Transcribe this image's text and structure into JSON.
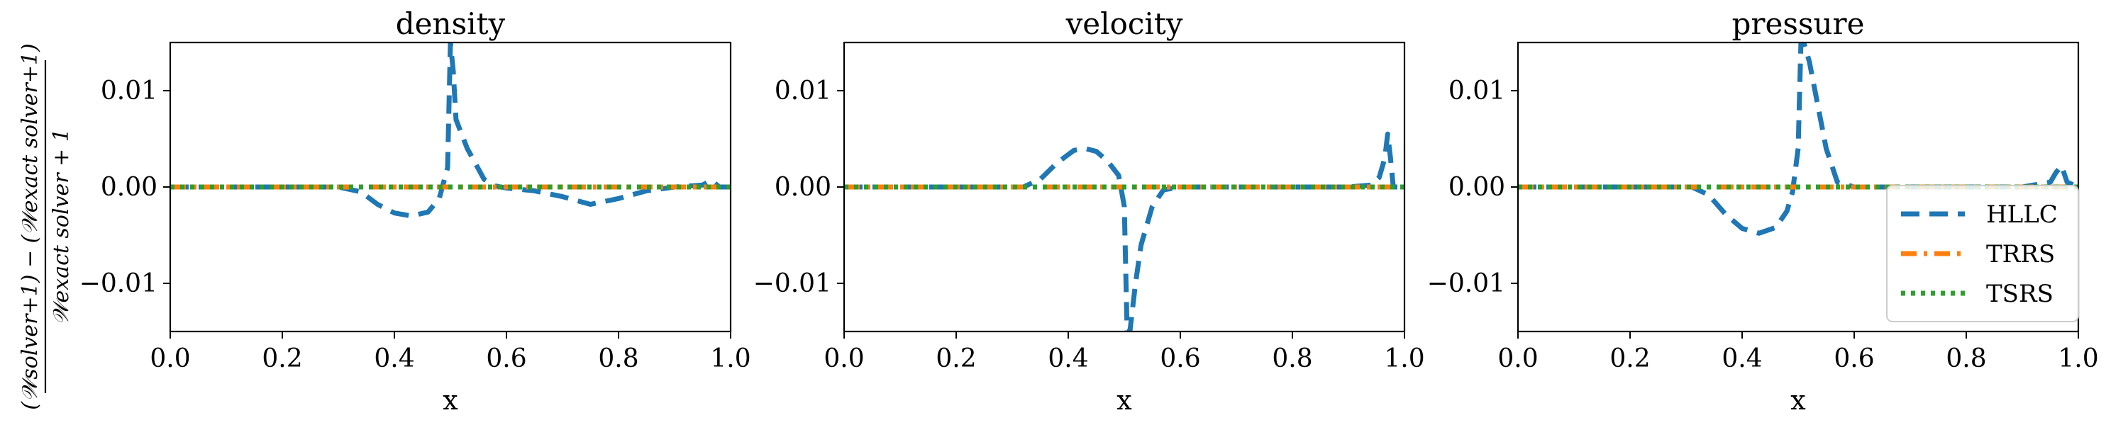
{
  "figure": {
    "ylabel": {
      "numerator": "(𝒲solver+1) − (𝒲exact solver+1)",
      "denominator": "𝒲exact solver + 1"
    }
  },
  "colors": {
    "HLLC": "#1f77b4",
    "TRRS": "#ff7f0e",
    "TSRS": "#2ca02c",
    "axes": "#000000"
  },
  "legend": {
    "placement": "lower-right of third panel",
    "entries": [
      {
        "label": "HLLC",
        "style": "dashed"
      },
      {
        "label": "TRRS",
        "style": "dash-dot"
      },
      {
        "label": "TSRS",
        "style": "dotted"
      }
    ]
  },
  "chart_data": [
    {
      "type": "line",
      "title": "density",
      "xlabel": "x",
      "ylabel": "",
      "xlim": [
        0.0,
        1.0
      ],
      "ylim": [
        -0.015,
        0.015
      ],
      "xticks": [
        "0.0",
        "0.2",
        "0.4",
        "0.6",
        "0.8",
        "1.0"
      ],
      "yticks": [
        "−0.01",
        "0.00",
        "0.01"
      ],
      "ytick_values": [
        -0.01,
        0.0,
        0.01
      ],
      "xtick_values": [
        0.0,
        0.2,
        0.4,
        0.6,
        0.8,
        1.0
      ],
      "grid": false,
      "series": [
        {
          "name": "HLLC",
          "x": [
            0.0,
            0.3,
            0.34,
            0.37,
            0.4,
            0.43,
            0.46,
            0.48,
            0.495,
            0.5,
            0.505,
            0.51,
            0.53,
            0.56,
            0.58,
            0.6,
            0.65,
            0.7,
            0.75,
            0.8,
            0.85,
            0.9,
            0.95,
            0.965,
            0.98,
            1.0
          ],
          "y": [
            0.0,
            0.0,
            -0.0005,
            -0.0018,
            -0.0027,
            -0.003,
            -0.0026,
            -0.0012,
            0.002,
            0.015,
            0.012,
            0.007,
            0.004,
            0.0008,
            0.0001,
            -0.0001,
            -0.0004,
            -0.001,
            -0.0018,
            -0.0012,
            -0.0004,
            0.0,
            0.0002,
            0.0007,
            0.0,
            0.0
          ]
        },
        {
          "name": "TRRS",
          "x": [
            0.0,
            1.0
          ],
          "y": [
            0.0,
            0.0
          ]
        },
        {
          "name": "TSRS",
          "x": [
            0.0,
            1.0
          ],
          "y": [
            0.0,
            0.0
          ]
        }
      ]
    },
    {
      "type": "line",
      "title": "velocity",
      "xlabel": "x",
      "ylabel": "",
      "xlim": [
        0.0,
        1.0
      ],
      "ylim": [
        -0.015,
        0.015
      ],
      "xticks": [
        "0.0",
        "0.2",
        "0.4",
        "0.6",
        "0.8",
        "1.0"
      ],
      "yticks": [
        "−0.01",
        "0.00",
        "0.01"
      ],
      "ytick_values": [
        -0.01,
        0.0,
        0.01
      ],
      "xtick_values": [
        0.0,
        0.2,
        0.4,
        0.6,
        0.8,
        1.0
      ],
      "grid": false,
      "series": [
        {
          "name": "HLLC",
          "x": [
            0.0,
            0.32,
            0.35,
            0.38,
            0.41,
            0.43,
            0.45,
            0.47,
            0.49,
            0.5,
            0.505,
            0.51,
            0.52,
            0.53,
            0.55,
            0.57,
            0.6,
            0.9,
            0.94,
            0.955,
            0.965,
            0.97,
            0.975,
            0.98,
            1.0
          ],
          "y": [
            0.0,
            0.0,
            0.0008,
            0.0025,
            0.0038,
            0.004,
            0.0037,
            0.0027,
            0.0012,
            -0.002,
            -0.015,
            -0.015,
            -0.01,
            -0.006,
            -0.002,
            -0.0003,
            0.0,
            0.0,
            0.0002,
            0.001,
            0.003,
            0.0055,
            0.003,
            0.0,
            0.0
          ]
        },
        {
          "name": "TRRS",
          "x": [
            0.0,
            1.0
          ],
          "y": [
            0.0,
            0.0
          ]
        },
        {
          "name": "TSRS",
          "x": [
            0.0,
            1.0
          ],
          "y": [
            0.0,
            0.0
          ]
        }
      ]
    },
    {
      "type": "line",
      "title": "pressure",
      "xlabel": "x",
      "ylabel": "",
      "xlim": [
        0.0,
        1.0
      ],
      "ylim": [
        -0.015,
        0.015
      ],
      "xticks": [
        "0.0",
        "0.2",
        "0.4",
        "0.6",
        "0.8",
        "1.0"
      ],
      "yticks": [
        "−0.01",
        "0.00",
        "0.01"
      ],
      "ytick_values": [
        -0.01,
        0.0,
        0.01
      ],
      "xtick_values": [
        0.0,
        0.2,
        0.4,
        0.6,
        0.8,
        1.0
      ],
      "grid": false,
      "series": [
        {
          "name": "HLLC",
          "x": [
            0.0,
            0.31,
            0.34,
            0.37,
            0.4,
            0.43,
            0.46,
            0.48,
            0.49,
            0.5,
            0.505,
            0.51,
            0.52,
            0.53,
            0.55,
            0.57,
            0.6,
            0.9,
            0.95,
            0.96,
            0.97,
            0.98,
            1.0
          ],
          "y": [
            0.0,
            0.0,
            -0.0008,
            -0.0028,
            -0.0043,
            -0.0048,
            -0.0042,
            -0.0025,
            -0.0005,
            0.004,
            0.015,
            0.015,
            0.013,
            0.01,
            0.004,
            0.0005,
            0.0,
            0.0,
            0.0005,
            0.0015,
            0.0022,
            0.0005,
            0.0
          ]
        },
        {
          "name": "TRRS",
          "x": [
            0.0,
            1.0
          ],
          "y": [
            0.0,
            0.0
          ]
        },
        {
          "name": "TSRS",
          "x": [
            0.0,
            1.0
          ],
          "y": [
            0.0,
            0.0
          ]
        }
      ]
    }
  ]
}
